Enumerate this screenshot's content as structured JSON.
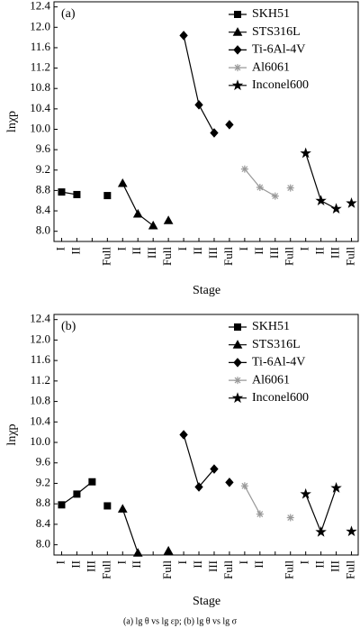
{
  "caption": "(a) lg θ vs lg εp; (b) lg θ vs lg σ",
  "chart_data": [
    {
      "type": "line",
      "label": "(a)",
      "xlabel": "Stage",
      "ylabel": "lnχp",
      "legend": "upper right",
      "categories": [
        "I",
        "II",
        null,
        "Full",
        "I",
        "II",
        "III",
        "Full",
        "I",
        "II",
        "III",
        "Full",
        "I",
        "II",
        "III",
        "Full",
        "I",
        "II",
        "III",
        "Full"
      ],
      "ylim": [
        7.8,
        12.5
      ],
      "yticks": [
        {
          "value": 8,
          "label": "8.0"
        },
        8.4,
        8.8,
        9.2,
        9.6,
        {
          "value": 10,
          "label": "10.0"
        },
        10.4,
        10.8,
        11.2,
        11.6,
        {
          "value": 12,
          "label": "12.0"
        },
        12.4
      ],
      "series": [
        {
          "name": "SKH51",
          "marker": "square",
          "color": "#000000",
          "values": [
            8.77,
            8.72,
            null,
            8.7,
            null,
            null,
            null,
            null,
            null,
            null,
            null,
            null,
            null,
            null,
            null,
            null,
            null,
            null,
            null,
            null
          ]
        },
        {
          "name": "STS316L",
          "marker": "triangle",
          "color": "#000000",
          "values": [
            null,
            null,
            null,
            null,
            8.94,
            8.34,
            8.11,
            8.21,
            null,
            null,
            null,
            null,
            null,
            null,
            null,
            null,
            null,
            null,
            null,
            null
          ]
        },
        {
          "name": "Ti-6Al-4V",
          "marker": "diamond",
          "color": "#000000",
          "values": [
            null,
            null,
            null,
            null,
            null,
            null,
            null,
            null,
            11.84,
            10.48,
            9.93,
            10.09,
            null,
            null,
            null,
            null,
            null,
            null,
            null,
            null
          ]
        },
        {
          "name": "Al6061",
          "marker": "asterisk",
          "color": "#999999",
          "values": [
            null,
            null,
            null,
            null,
            null,
            null,
            null,
            null,
            null,
            null,
            null,
            null,
            9.22,
            8.86,
            8.69,
            8.85,
            null,
            null,
            null,
            null
          ]
        },
        {
          "name": "Inconel600",
          "marker": "star",
          "color": "#000000",
          "values": [
            null,
            null,
            null,
            null,
            null,
            null,
            null,
            null,
            null,
            null,
            null,
            null,
            null,
            null,
            null,
            null,
            9.53,
            8.6,
            8.44,
            8.55
          ]
        }
      ]
    },
    {
      "type": "line",
      "label": "(b)",
      "xlabel": "Stage",
      "ylabel": "lnχp",
      "legend": "upper right",
      "categories": [
        "I",
        "II",
        "III",
        "Full",
        "I",
        "II",
        null,
        "Full",
        "I",
        "II",
        "III",
        "Full",
        "I",
        "II",
        null,
        "Full",
        "I",
        "II",
        "III",
        "Full"
      ],
      "ylim": [
        7.8,
        12.5
      ],
      "yticks": [
        {
          "value": 8,
          "label": "8.0"
        },
        8.4,
        8.8,
        9.2,
        9.6,
        {
          "value": 10,
          "label": "10.0"
        },
        10.4,
        10.8,
        11.2,
        11.6,
        {
          "value": 12,
          "label": "12.0"
        },
        12.4
      ],
      "series": [
        {
          "name": "SKH51",
          "marker": "square",
          "color": "#000000",
          "values": [
            8.78,
            8.99,
            9.23,
            8.76,
            null,
            null,
            null,
            null,
            null,
            null,
            null,
            null,
            null,
            null,
            null,
            null,
            null,
            null,
            null,
            null
          ]
        },
        {
          "name": "STS316L",
          "marker": "triangle",
          "color": "#000000",
          "values": [
            null,
            null,
            null,
            null,
            8.7,
            7.84,
            null,
            7.88,
            null,
            null,
            null,
            null,
            null,
            null,
            null,
            null,
            null,
            null,
            null,
            null
          ]
        },
        {
          "name": "Ti-6Al-4V",
          "marker": "diamond",
          "color": "#000000",
          "values": [
            null,
            null,
            null,
            null,
            null,
            null,
            null,
            null,
            10.15,
            9.13,
            9.48,
            9.22,
            null,
            null,
            null,
            null,
            null,
            null,
            null,
            null
          ]
        },
        {
          "name": "Al6061",
          "marker": "asterisk",
          "color": "#999999",
          "values": [
            null,
            null,
            null,
            null,
            null,
            null,
            null,
            null,
            null,
            null,
            null,
            null,
            9.15,
            8.6,
            null,
            8.53,
            null,
            null,
            null,
            null
          ]
        },
        {
          "name": "Inconel600",
          "marker": "star",
          "color": "#000000",
          "values": [
            null,
            null,
            null,
            null,
            null,
            null,
            null,
            null,
            null,
            null,
            null,
            null,
            null,
            null,
            null,
            null,
            8.99,
            8.25,
            9.11,
            8.26
          ]
        }
      ]
    }
  ]
}
